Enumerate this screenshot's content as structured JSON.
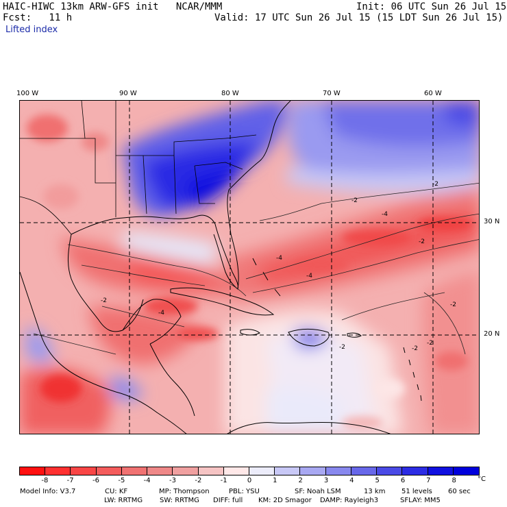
{
  "header": {
    "model_title": "HAIC-HIWC 13km ARW-GFS init   NCAR/MMM",
    "init": "Init: 06 UTC Sun 26 Jul 15",
    "fcst": "Fcst:   11 h",
    "valid": "Valid: 17 UTC Sun 26 Jul 15 (15 LDT Sun 26 Jul 15)",
    "field": "Lifted index"
  },
  "map": {
    "longitude_labels": [
      "100 W",
      "90 W",
      "80 W",
      "70 W",
      "60 W"
    ],
    "latitude_labels": [
      "30 N",
      "20 N"
    ],
    "contour_labels": [
      "-2",
      "-2",
      "-4",
      "-2",
      "-2",
      "-4",
      "-2",
      "-4",
      "-2",
      "-2",
      "-4",
      "-2"
    ]
  },
  "colorbar": {
    "ticks": [
      "-8",
      "-7",
      "-6",
      "-5",
      "-4",
      "-3",
      "-2",
      "-1",
      "0",
      "1",
      "2",
      "3",
      "4",
      "5",
      "6",
      "7",
      "8"
    ],
    "unit": "°C",
    "colors": [
      "#ff1010",
      "#ff3030",
      "#f94646",
      "#f45c5c",
      "#f07272",
      "#ef8888",
      "#f0a0a0",
      "#f6c4c4",
      "#ffe8e8",
      "#ececfa",
      "#c8c8f6",
      "#a8a8f2",
      "#8888ee",
      "#6868ea",
      "#4a4ae6",
      "#2c2ce4",
      "#1010e0",
      "#0000dc"
    ]
  },
  "model_info": {
    "line1": [
      "Model Info: V3.7",
      "CU: KF",
      "MP: Thompson",
      "PBL: YSU",
      "SF: Noah LSM",
      "13 km",
      "51 levels",
      "60 sec"
    ],
    "line2": [
      "LW: RRTMG",
      "SW: RRTMG",
      "DIFF: full",
      "KM: 2D Smagor",
      "DAMP: Rayleigh3",
      "SFLAY: MM5"
    ]
  }
}
